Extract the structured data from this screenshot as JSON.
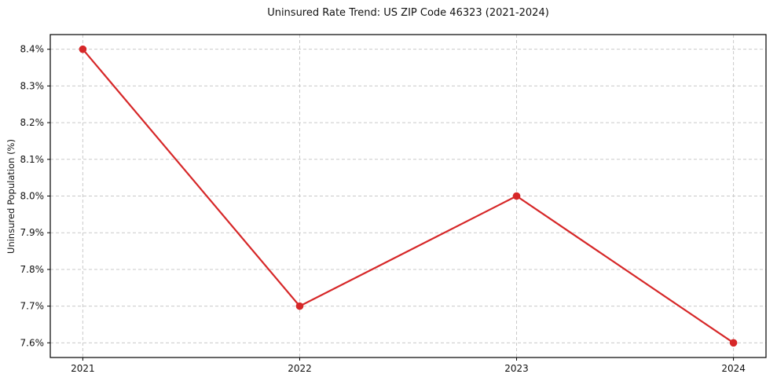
{
  "page": {
    "background": "#ffffff"
  },
  "chart_data": {
    "type": "line",
    "title": "Uninsured Rate Trend: US ZIP Code 46323 (2021-2024)",
    "xlabel": "",
    "ylabel": "Uninsured Population (%)",
    "x": [
      2021,
      2022,
      2023,
      2024
    ],
    "series": [
      {
        "name": "Uninsured rate",
        "values": [
          8.4,
          7.7,
          8.0,
          7.6
        ],
        "color": "#d62728",
        "marker": "circle"
      }
    ],
    "xticks": {
      "values": [
        2021,
        2022,
        2023,
        2024
      ],
      "labels": [
        "2021",
        "2022",
        "2023",
        "2024"
      ]
    },
    "yticks": {
      "values": [
        7.6,
        7.7,
        7.8,
        7.9,
        8.0,
        8.1,
        8.2,
        8.3,
        8.4
      ],
      "labels": [
        "7.6%",
        "7.7%",
        "7.8%",
        "7.9%",
        "8.0%",
        "8.1%",
        "8.2%",
        "8.3%",
        "8.4%"
      ]
    },
    "xlim": [
      2020.85,
      2024.15
    ],
    "ylim": [
      7.56,
      8.44
    ],
    "grid": {
      "visible": true,
      "style": "dashed",
      "color": "#c9c9c9"
    },
    "legend": {
      "visible": false
    }
  },
  "style": {
    "line_color": "#d62728",
    "marker_color": "#d62728",
    "axis_color": "#000000",
    "tick_color": "#000000",
    "text_color": "#111111"
  }
}
